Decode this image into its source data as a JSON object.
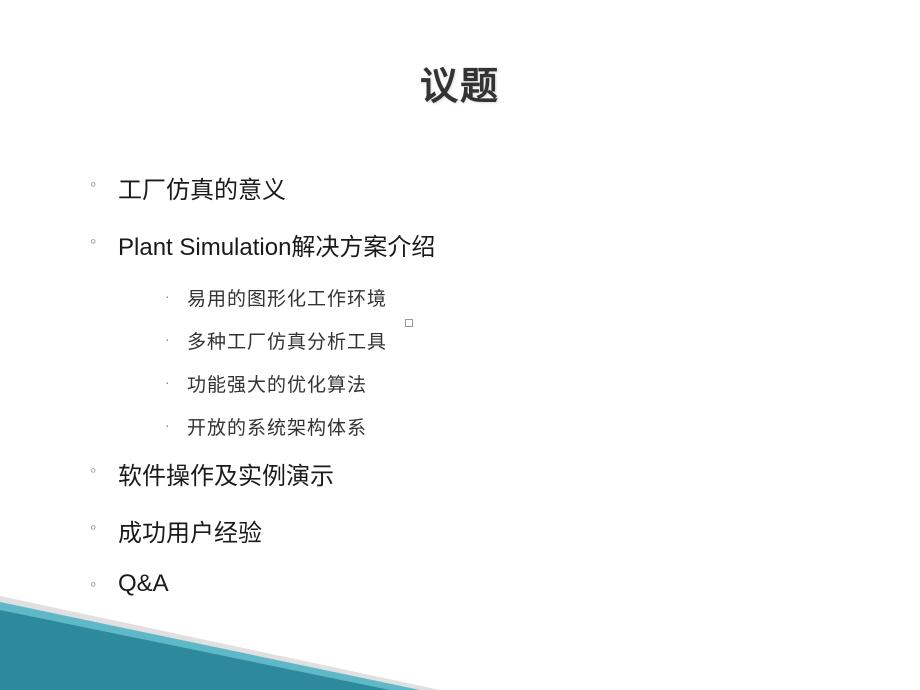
{
  "title": "议题",
  "bullets": [
    {
      "level": 1,
      "text": "工厂仿真的意义"
    },
    {
      "level": 1,
      "text": "Plant Simulation解决方案介绍"
    },
    {
      "level": 2,
      "text": "易用的图形化工作环境"
    },
    {
      "level": 2,
      "text": "多种工厂仿真分析工具"
    },
    {
      "level": 2,
      "text": "功能强大的优化算法"
    },
    {
      "level": 2,
      "text": "开放的系统架构体系"
    },
    {
      "level": 1,
      "text": "软件操作及实例演示"
    },
    {
      "level": 1,
      "text": "成功用户经验"
    },
    {
      "level": 1,
      "text": "Q&A"
    }
  ],
  "markers": {
    "level1": "◦",
    "level2": "·"
  },
  "styling": {
    "title_color": "#333333",
    "title_fontsize": 38,
    "bullet_l1_fontsize": 24,
    "bullet_l1_color": "#1a1a1a",
    "bullet_l2_fontsize": 19,
    "bullet_l2_color": "#333333",
    "marker_color": "#888888",
    "background_color": "#ffffff",
    "corner_triangle_dark": "#2d8a9c",
    "corner_triangle_light": "#5fb8c8"
  }
}
